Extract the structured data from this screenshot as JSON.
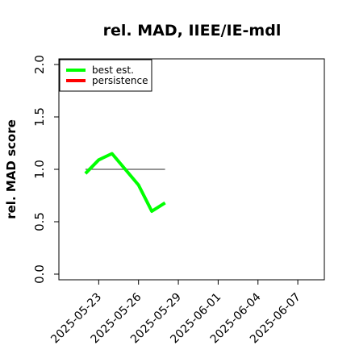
{
  "chart_data": {
    "type": "line",
    "title": "rel. MAD, IIEE/IE-mdl",
    "y_label": "rel. MAD score",
    "x": [
      "2025-05-22",
      "2025-05-23",
      "2025-05-24",
      "2025-05-25",
      "2025-05-26",
      "2025-05-27",
      "2025-05-28"
    ],
    "series": [
      {
        "name": "best est.",
        "color": "#00ff00",
        "values": [
          0.96,
          1.09,
          1.15,
          1.0,
          0.85,
          0.6,
          0.68
        ]
      },
      {
        "name": "persistence",
        "color": "#ff0000",
        "values": [
          null,
          null,
          null,
          null,
          null,
          null,
          null
        ]
      }
    ],
    "hline": {
      "y": 1.0,
      "color": "#555555"
    },
    "xlim": [
      "2025-05-20",
      "2025-06-09"
    ],
    "xticks": [
      "2025-05-23",
      "2025-05-26",
      "2025-05-29",
      "2025-06-01",
      "2025-06-04",
      "2025-06-07"
    ],
    "ylim": [
      -0.054,
      2.054
    ],
    "yticks": [
      0.0,
      0.5,
      1.0,
      1.5,
      2.0
    ],
    "yticks_labels": [
      "0.0",
      "0.5",
      "1.0",
      "1.5",
      "2.0"
    ],
    "legend": "top-left"
  }
}
